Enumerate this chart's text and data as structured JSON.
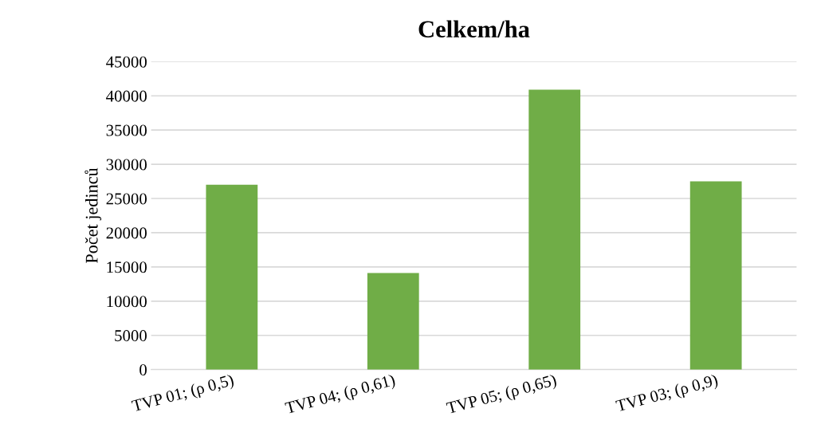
{
  "chart_data": {
    "type": "bar",
    "title": "Celkem/ha",
    "ylabel": "Počet jedinců",
    "categories": [
      "TVP 01; (ρ 0,5)",
      "TVP 04; (ρ 0,61)",
      "TVP 05; (ρ 0,65)",
      "TVP 03; (ρ 0,9)"
    ],
    "values": [
      27000,
      14100,
      40900,
      27500
    ],
    "color": "#70ad47",
    "ylim": [
      0,
      45000
    ],
    "yticks": [
      0,
      5000,
      10000,
      15000,
      20000,
      25000,
      30000,
      35000,
      40000,
      45000
    ],
    "grid": "y",
    "legend": false
  }
}
